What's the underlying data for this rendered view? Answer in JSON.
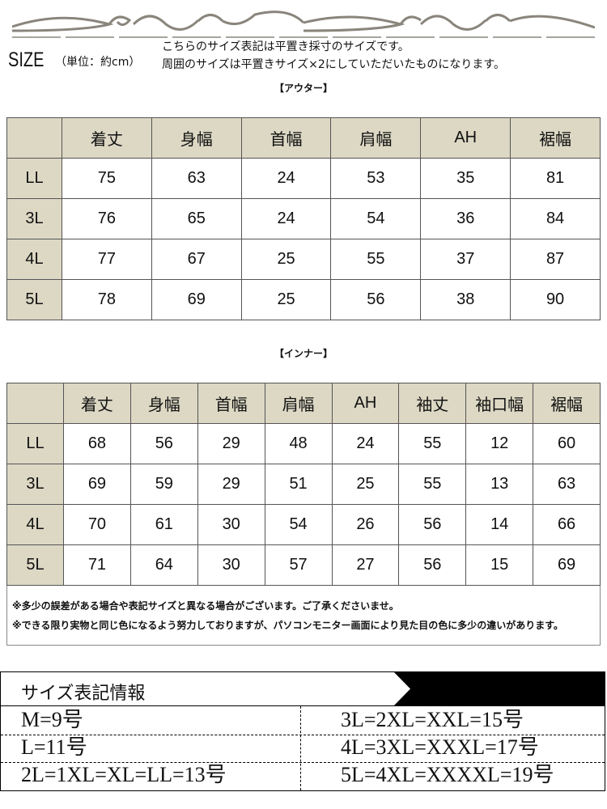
{
  "header": {
    "size_label": "SIZE",
    "unit": "（単位：約cm）",
    "desc_lines": [
      "こちらのサイズ表記は平置き採寸のサイズです。",
      "周囲のサイズは平置きサイズ×2にしていただいたものになります。"
    ]
  },
  "outer": {
    "title": "【アウター】",
    "columns": [
      "着丈",
      "身幅",
      "首幅",
      "肩幅",
      "AH",
      "裾幅"
    ],
    "rows": [
      {
        "size": "LL",
        "values": [
          "75",
          "63",
          "24",
          "53",
          "35",
          "81"
        ]
      },
      {
        "size": "3L",
        "values": [
          "76",
          "65",
          "24",
          "54",
          "36",
          "84"
        ]
      },
      {
        "size": "4L",
        "values": [
          "77",
          "67",
          "25",
          "55",
          "37",
          "87"
        ]
      },
      {
        "size": "5L",
        "values": [
          "78",
          "69",
          "25",
          "56",
          "38",
          "90"
        ]
      }
    ]
  },
  "inner": {
    "title": "【インナー】",
    "columns": [
      "着丈",
      "身幅",
      "首幅",
      "肩幅",
      "AH",
      "袖丈",
      "袖口幅",
      "裾幅"
    ],
    "rows": [
      {
        "size": "LL",
        "values": [
          "68",
          "56",
          "29",
          "48",
          "24",
          "55",
          "12",
          "60"
        ]
      },
      {
        "size": "3L",
        "values": [
          "69",
          "59",
          "29",
          "51",
          "25",
          "55",
          "13",
          "63"
        ]
      },
      {
        "size": "4L",
        "values": [
          "70",
          "61",
          "30",
          "54",
          "26",
          "56",
          "14",
          "66"
        ]
      },
      {
        "size": "5L",
        "values": [
          "71",
          "64",
          "30",
          "57",
          "27",
          "56",
          "15",
          "69"
        ]
      }
    ],
    "notes": [
      "※多少の誤差がある場合や表記サイズと異なる場合がございます。ご了承くださいませ。",
      "※できる限り実物と同じ色になるよう努力しておりますが、パソコンモニター画面により見た目の色に多少の違いがあります。"
    ]
  },
  "size_info": {
    "title": "サイズ表記情報",
    "left": [
      "M=9号",
      "L=11号",
      "2L=1XL=XL=LL=13号"
    ],
    "right": [
      "3L=2XL=XXL=15号",
      "4L=3XL=XXXL=17号",
      "5L=4XL=XXXXL=19号"
    ]
  },
  "colors": {
    "header_bg": "#dcd8c4",
    "ornament": "#8a857c"
  }
}
